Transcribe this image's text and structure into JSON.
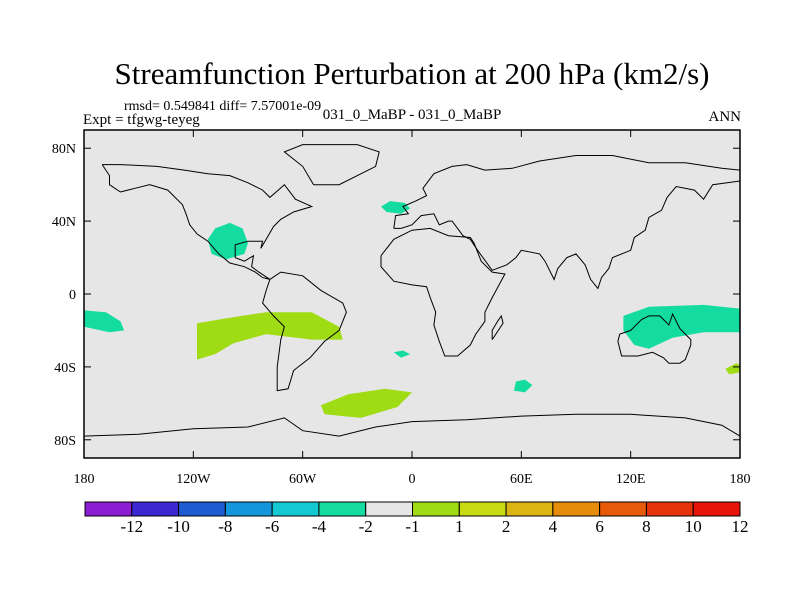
{
  "chart_data": {
    "type": "heatmap",
    "title": "Streamfunction Perturbation at 200 hPa (km2/s)",
    "stats_text": "rmsd= 0.549841 diff= 7.57001e-09",
    "left_label": "Expt = tfgwg-teyeg",
    "center_label": "031_0_MaBP - 031_0_MaBP",
    "right_label": "ANN",
    "x_axis": {
      "range": [
        -180,
        180
      ],
      "ticks": [
        {
          "value": -180,
          "label": "180"
        },
        {
          "value": -120,
          "label": "120W"
        },
        {
          "value": -60,
          "label": "60W"
        },
        {
          "value": 0,
          "label": "0"
        },
        {
          "value": 60,
          "label": "60E"
        },
        {
          "value": 120,
          "label": "120E"
        },
        {
          "value": 180,
          "label": "180"
        }
      ]
    },
    "y_axis": {
      "range": [
        -90,
        90
      ],
      "ticks": [
        {
          "value": 80,
          "label": "80N"
        },
        {
          "value": 40,
          "label": "40N"
        },
        {
          "value": 0,
          "label": "0"
        },
        {
          "value": -40,
          "label": "40S"
        },
        {
          "value": -80,
          "label": "80S"
        }
      ]
    },
    "background_color": "#e6e6e6",
    "colorbar": {
      "colors": [
        "#8c1ed2",
        "#3c28d2",
        "#1e5ad2",
        "#1496dc",
        "#14c8d2",
        "#14dca0",
        "#e6e6e6",
        "#a0dc14",
        "#c8dc14",
        "#dcb414",
        "#e68c0a",
        "#e65a0a",
        "#e6320a",
        "#e6140a"
      ],
      "labels": [
        "-12",
        "-10",
        "-8",
        "-6",
        "-4",
        "-2",
        "-1",
        "1",
        "2",
        "4",
        "6",
        "8",
        "10",
        "12"
      ]
    },
    "regions": [
      {
        "name": "anomaly-nw-atlantic",
        "level": "-2",
        "color": "#14dca0",
        "polygon": [
          [
            -112,
            30
          ],
          [
            -108,
            36
          ],
          [
            -100,
            39
          ],
          [
            -93,
            36
          ],
          [
            -90,
            28
          ],
          [
            -92,
            22
          ],
          [
            -102,
            19
          ],
          [
            -110,
            22
          ]
        ]
      },
      {
        "name": "anomaly-mediterranean",
        "level": "-2",
        "color": "#14dca0",
        "polygon": [
          [
            -17,
            48
          ],
          [
            -12,
            51
          ],
          [
            -4,
            50
          ],
          [
            -1,
            47
          ],
          [
            -6,
            44
          ],
          [
            -14,
            45
          ]
        ]
      },
      {
        "name": "anomaly-east-pacific",
        "level": "-2",
        "color": "#14dca0",
        "polygon": [
          [
            -180,
            -9
          ],
          [
            -168,
            -10
          ],
          [
            -160,
            -15
          ],
          [
            -158,
            -20
          ],
          [
            -166,
            -21
          ],
          [
            -180,
            -18
          ]
        ]
      },
      {
        "name": "anomaly-indian-ocean",
        "level": "-2",
        "color": "#14dca0",
        "polygon": [
          [
            57,
            -48
          ],
          [
            62,
            -47
          ],
          [
            66,
            -50
          ],
          [
            62,
            -54
          ],
          [
            56,
            -53
          ]
        ]
      },
      {
        "name": "anomaly-australia-pacific",
        "level": "-2",
        "color": "#14dca0",
        "polygon": [
          [
            116,
            -12
          ],
          [
            130,
            -7
          ],
          [
            160,
            -6
          ],
          [
            180,
            -8
          ],
          [
            180,
            -21
          ],
          [
            160,
            -21
          ],
          [
            143,
            -24
          ],
          [
            130,
            -30
          ],
          [
            122,
            -28
          ],
          [
            116,
            -20
          ]
        ]
      },
      {
        "name": "anomaly-south-atlantic-small",
        "level": "-2",
        "color": "#14dca0",
        "polygon": [
          [
            -10,
            -32
          ],
          [
            -5,
            -31
          ],
          [
            -1,
            -33
          ],
          [
            -6,
            -35
          ]
        ]
      },
      {
        "name": "anomaly-far-east-small",
        "level": "1",
        "color": "#a0dc14",
        "polygon": [
          [
            172,
            -41
          ],
          [
            178,
            -38
          ],
          [
            180,
            -39
          ],
          [
            180,
            -43
          ],
          [
            174,
            -44
          ]
        ]
      },
      {
        "name": "anomaly-southeast-pacific",
        "level": "1",
        "color": "#a0dc14",
        "polygon": [
          [
            -118,
            -16
          ],
          [
            -100,
            -13
          ],
          [
            -80,
            -10
          ],
          [
            -55,
            -10
          ],
          [
            -40,
            -18
          ],
          [
            -38,
            -25
          ],
          [
            -55,
            -25
          ],
          [
            -80,
            -22
          ],
          [
            -98,
            -27
          ],
          [
            -108,
            -33
          ],
          [
            -118,
            -36
          ]
        ]
      },
      {
        "name": "anomaly-south-atlantic",
        "level": "1",
        "color": "#a0dc14",
        "polygon": [
          [
            -50,
            -61
          ],
          [
            -35,
            -55
          ],
          [
            -15,
            -52
          ],
          [
            0,
            -54
          ],
          [
            -8,
            -62
          ],
          [
            -28,
            -68
          ],
          [
            -48,
            -66
          ]
        ]
      }
    ],
    "coastlines": [
      [
        [
          -170,
          71
        ],
        [
          -160,
          71
        ],
        [
          -140,
          70
        ],
        [
          -125,
          68
        ],
        [
          -112,
          66
        ],
        [
          -100,
          65
        ],
        [
          -90,
          61
        ],
        [
          -82,
          57
        ],
        [
          -78,
          53
        ],
        [
          -70,
          60
        ],
        [
          -64,
          52
        ],
        [
          -55,
          48
        ],
        [
          -65,
          45
        ],
        [
          -72,
          41
        ],
        [
          -76,
          37
        ],
        [
          -80,
          30
        ],
        [
          -83,
          25
        ],
        [
          -82,
          29
        ],
        [
          -90,
          29
        ],
        [
          -97,
          27
        ],
        [
          -97,
          20
        ],
        [
          -92,
          18
        ],
        [
          -87,
          21
        ],
        [
          -88,
          15
        ],
        [
          -84,
          12
        ],
        [
          -78,
          8
        ],
        [
          -82,
          9
        ],
        [
          -86,
          12
        ],
        [
          -92,
          15
        ],
        [
          -100,
          17
        ],
        [
          -106,
          22
        ],
        [
          -112,
          29
        ],
        [
          -118,
          33
        ],
        [
          -122,
          38
        ],
        [
          -124,
          44
        ],
        [
          -126,
          49
        ],
        [
          -134,
          57
        ],
        [
          -144,
          60
        ],
        [
          -152,
          58
        ],
        [
          -160,
          56
        ],
        [
          -166,
          60
        ],
        [
          -166,
          65
        ],
        [
          -170,
          71
        ]
      ],
      [
        [
          -78,
          8
        ],
        [
          -72,
          12
        ],
        [
          -60,
          10
        ],
        [
          -50,
          2
        ],
        [
          -38,
          -5
        ],
        [
          -36,
          -10
        ],
        [
          -40,
          -20
        ],
        [
          -48,
          -26
        ],
        [
          -56,
          -35
        ],
        [
          -65,
          -42
        ],
        [
          -68,
          -52
        ],
        [
          -74,
          -53
        ],
        [
          -74,
          -40
        ],
        [
          -72,
          -25
        ],
        [
          -70,
          -18
        ],
        [
          -76,
          -12
        ],
        [
          -82,
          -5
        ],
        [
          -80,
          2
        ],
        [
          -78,
          8
        ]
      ],
      [
        [
          -54,
          60
        ],
        [
          -40,
          60
        ],
        [
          -20,
          70
        ],
        [
          -18,
          78
        ],
        [
          -30,
          82
        ],
        [
          -60,
          82
        ],
        [
          -70,
          78
        ],
        [
          -60,
          70
        ],
        [
          -54,
          60
        ]
      ],
      [
        [
          -10,
          36
        ],
        [
          -9,
          43
        ],
        [
          -2,
          44
        ],
        [
          -5,
          48
        ],
        [
          2,
          51
        ],
        [
          8,
          54
        ],
        [
          6,
          58
        ],
        [
          12,
          66
        ],
        [
          22,
          70
        ],
        [
          30,
          71
        ],
        [
          40,
          68
        ],
        [
          55,
          69
        ],
        [
          70,
          73
        ],
        [
          90,
          76
        ],
        [
          110,
          76
        ],
        [
          130,
          72
        ],
        [
          150,
          72
        ],
        [
          170,
          69
        ],
        [
          180,
          68
        ],
        [
          180,
          62
        ],
        [
          165,
          60
        ],
        [
          160,
          52
        ],
        [
          155,
          57
        ],
        [
          145,
          59
        ],
        [
          140,
          53
        ],
        [
          137,
          46
        ],
        [
          130,
          42
        ],
        [
          128,
          35
        ],
        [
          122,
          31
        ],
        [
          120,
          24
        ],
        [
          110,
          20
        ],
        [
          108,
          14
        ],
        [
          104,
          9
        ],
        [
          102,
          3
        ],
        [
          98,
          8
        ],
        [
          95,
          16
        ],
        [
          90,
          22
        ],
        [
          85,
          20
        ],
        [
          80,
          14
        ],
        [
          78,
          8
        ],
        [
          73,
          18
        ],
        [
          70,
          22
        ],
        [
          60,
          24
        ],
        [
          57,
          20
        ],
        [
          52,
          16
        ],
        [
          44,
          13
        ],
        [
          36,
          24
        ],
        [
          32,
          30
        ],
        [
          28,
          32
        ],
        [
          22,
          40
        ],
        [
          20,
          40
        ],
        [
          15,
          38
        ],
        [
          12,
          44
        ],
        [
          5,
          43
        ],
        [
          0,
          38
        ],
        [
          -6,
          36
        ],
        [
          -10,
          36
        ]
      ],
      [
        [
          -17,
          21
        ],
        [
          -17,
          15
        ],
        [
          -10,
          7
        ],
        [
          0,
          5
        ],
        [
          8,
          4
        ],
        [
          10,
          -2
        ],
        [
          13,
          -10
        ],
        [
          12,
          -17
        ],
        [
          15,
          -26
        ],
        [
          18,
          -34
        ],
        [
          25,
          -34
        ],
        [
          32,
          -28
        ],
        [
          35,
          -22
        ],
        [
          40,
          -15
        ],
        [
          40,
          -10
        ],
        [
          44,
          -2
        ],
        [
          51,
          11
        ],
        [
          44,
          12
        ],
        [
          38,
          18
        ],
        [
          34,
          28
        ],
        [
          32,
          31
        ],
        [
          20,
          32
        ],
        [
          10,
          36
        ],
        [
          0,
          35
        ],
        [
          -10,
          30
        ],
        [
          -17,
          21
        ]
      ],
      [
        [
          114,
          -22
        ],
        [
          113,
          -26
        ],
        [
          115,
          -34
        ],
        [
          124,
          -34
        ],
        [
          132,
          -32
        ],
        [
          138,
          -35
        ],
        [
          141,
          -38
        ],
        [
          147,
          -38
        ],
        [
          150,
          -36
        ],
        [
          153,
          -28
        ],
        [
          153,
          -25
        ],
        [
          147,
          -19
        ],
        [
          143,
          -11
        ],
        [
          141,
          -17
        ],
        [
          136,
          -12
        ],
        [
          130,
          -12
        ],
        [
          126,
          -14
        ],
        [
          120,
          -20
        ],
        [
          114,
          -22
        ]
      ],
      [
        [
          44,
          -25
        ],
        [
          50,
          -16
        ],
        [
          49,
          -12
        ],
        [
          47,
          -15
        ],
        [
          44,
          -20
        ],
        [
          44,
          -25
        ]
      ],
      [
        [
          -180,
          -78
        ],
        [
          -150,
          -77
        ],
        [
          -120,
          -74
        ],
        [
          -90,
          -73
        ],
        [
          -70,
          -68
        ],
        [
          -60,
          -75
        ],
        [
          -40,
          -78
        ],
        [
          -20,
          -73
        ],
        [
          0,
          -70
        ],
        [
          30,
          -69
        ],
        [
          60,
          -67
        ],
        [
          90,
          -66
        ],
        [
          120,
          -66
        ],
        [
          150,
          -68
        ],
        [
          170,
          -72
        ],
        [
          180,
          -78
        ],
        [
          180,
          -90
        ],
        [
          -180,
          -90
        ],
        [
          -180,
          -78
        ]
      ]
    ]
  }
}
